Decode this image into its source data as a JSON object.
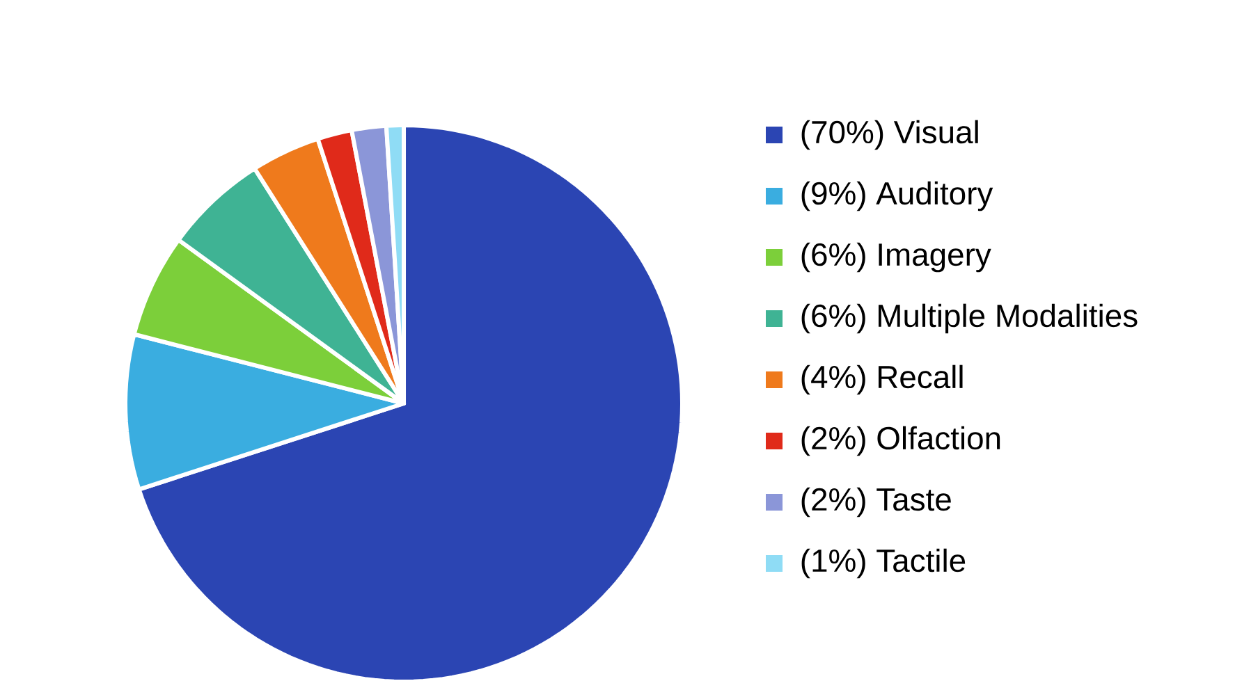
{
  "chart_data": {
    "type": "pie",
    "categories": [
      "(70%) Visual",
      "(9%)   Auditory",
      "(6%)   Imagery",
      "(6%)   Multiple Modalities",
      "(4%)   Recall",
      "(2%)   Olfaction",
      "(2%)   Taste",
      "(1%)   Tactile"
    ],
    "values": [
      70,
      9,
      6,
      6,
      4,
      2,
      2,
      1
    ],
    "colors": [
      "#2b45b3",
      "#3aade0",
      "#7ccf3a",
      "#3fb394",
      "#ef7a1c",
      "#e02a1a",
      "#8b96d8",
      "#8fdcf5"
    ],
    "legend": "right"
  }
}
